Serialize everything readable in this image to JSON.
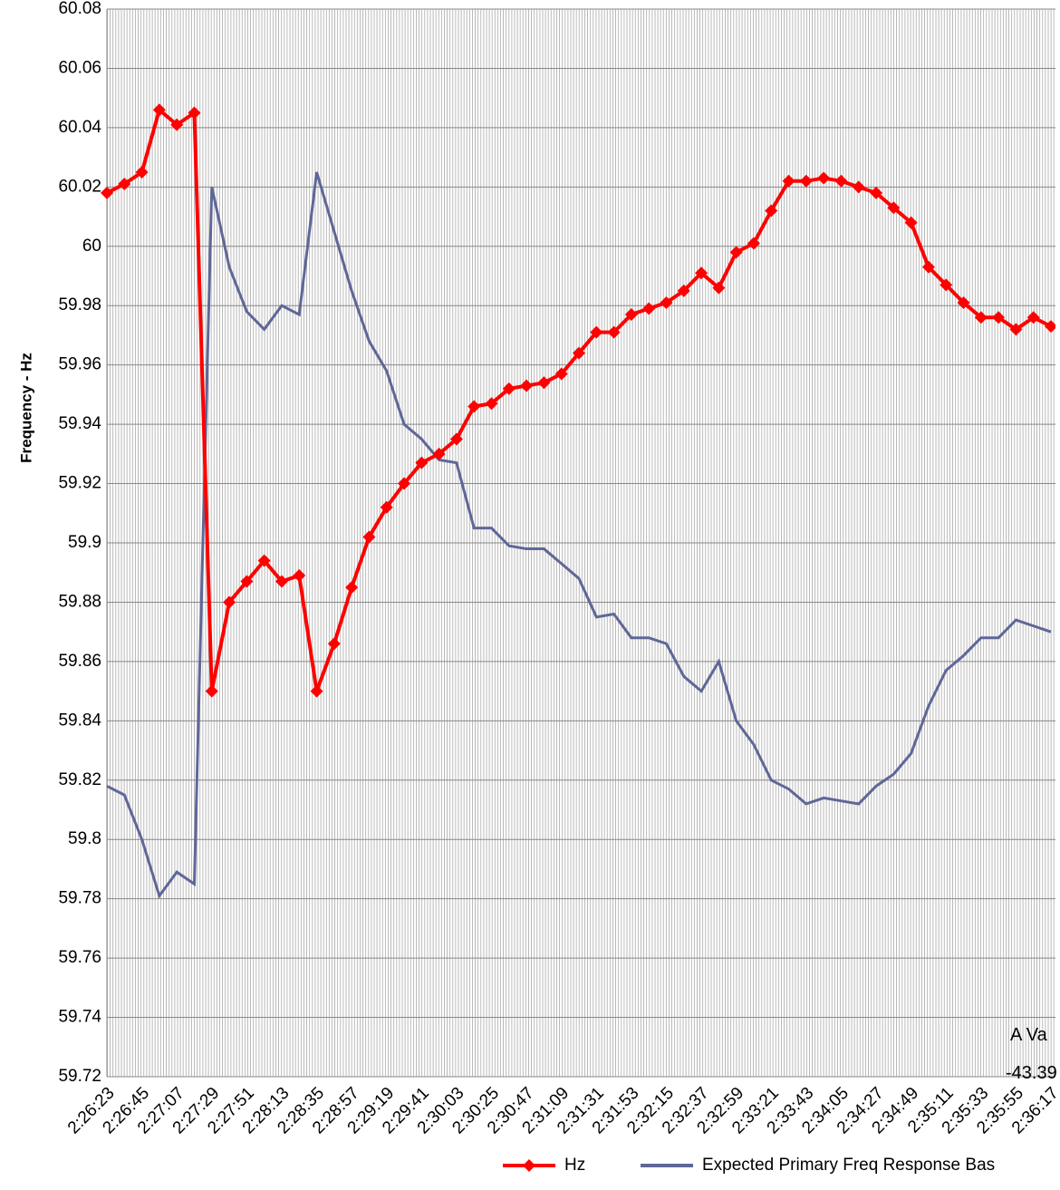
{
  "chart_data": {
    "type": "line",
    "y_label": "Frequency - Hz",
    "annotations": [
      "A Va",
      "-43.39"
    ],
    "categories": [
      "2:26:23",
      null,
      "2:26:45",
      null,
      "2:27:07",
      null,
      "2:27:29",
      null,
      "2:27:51",
      null,
      "2:28:13",
      null,
      "2:28:35",
      null,
      "2:28:57",
      null,
      "2:29:19",
      null,
      "2:29:41",
      null,
      "2:30:03",
      null,
      "2:30:25",
      null,
      "2:30:47",
      null,
      "2:31:09",
      null,
      "2:31:31",
      null,
      "2:31:53",
      null,
      "2:32:15",
      null,
      "2:32:37",
      null,
      "2:32:59",
      null,
      "2:33:21",
      null,
      "2:33:43",
      null,
      "2:34:05",
      null,
      "2:34:27",
      null,
      "2:34:49",
      null,
      "2:35:11",
      null,
      "2:35:33",
      null,
      "2:35:55",
      null,
      "2:36:17"
    ],
    "series": [
      {
        "name": "Hz",
        "color": "#ff0000",
        "marker": "diamond",
        "values": [
          60.018,
          60.021,
          60.025,
          60.046,
          60.041,
          60.045,
          59.85,
          59.88,
          59.887,
          59.894,
          59.887,
          59.889,
          59.85,
          59.866,
          59.885,
          59.902,
          59.912,
          59.92,
          59.927,
          59.93,
          59.935,
          59.946,
          59.947,
          59.952,
          59.953,
          59.954,
          59.957,
          59.964,
          59.971,
          59.971,
          59.977,
          59.979,
          59.981,
          59.985,
          59.991,
          59.986,
          59.998,
          60.001,
          60.012,
          60.022,
          60.022,
          60.023,
          60.022,
          60.02,
          60.018,
          60.013,
          60.008,
          59.993,
          59.987,
          59.981,
          59.976,
          59.976,
          59.972,
          59.976,
          59.973
        ]
      },
      {
        "name": "Expected Primary Freq Response Bas",
        "color": "#5f6797",
        "values": [
          59.818,
          59.815,
          59.8,
          59.781,
          59.789,
          59.785,
          60.02,
          59.993,
          59.978,
          59.972,
          59.98,
          59.977,
          60.025,
          60.005,
          59.985,
          59.968,
          59.958,
          59.94,
          59.935,
          59.928,
          59.927,
          59.905,
          59.905,
          59.899,
          59.898,
          59.898,
          59.893,
          59.888,
          59.875,
          59.876,
          59.868,
          59.868,
          59.866,
          59.855,
          59.85,
          59.86,
          59.84,
          59.832,
          59.82,
          59.817,
          59.812,
          59.814,
          59.813,
          59.812,
          59.818,
          59.822,
          59.829,
          59.845,
          59.857,
          59.862,
          59.868,
          59.868,
          59.874,
          59.872,
          59.87
        ]
      }
    ],
    "ylim": [
      59.72,
      60.08
    ],
    "yticks": [
      59.72,
      59.74,
      59.76,
      59.78,
      59.8,
      59.82,
      59.84,
      59.86,
      59.88,
      59.9,
      59.92,
      59.94,
      59.96,
      59.98,
      60,
      60.02,
      60.04,
      60.06,
      60.08
    ],
    "grid": true
  }
}
